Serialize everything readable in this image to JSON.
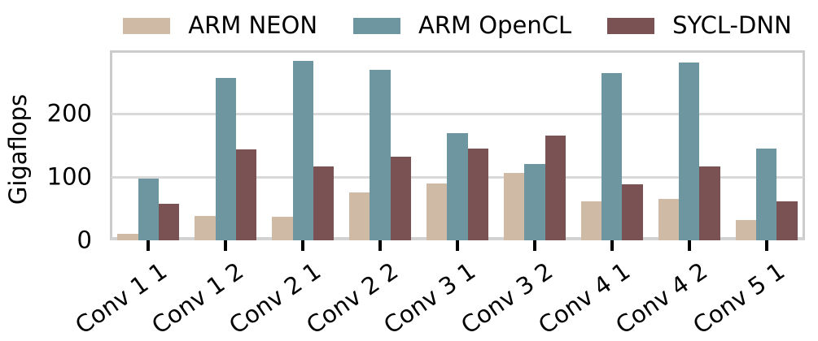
{
  "figure": {
    "background": "#ffffff",
    "text_color": "#000000",
    "grid_color": "#d9d9d9",
    "spine_color": "#cccccc",
    "tick_color": "#000000"
  },
  "chart_data": {
    "type": "bar",
    "title": "",
    "xlabel": "",
    "ylabel": "Gigaflops",
    "categories": [
      "Conv 1 1",
      "Conv 1 2",
      "Conv 2 1",
      "Conv 2 2",
      "Conv 3 1",
      "Conv 3 2",
      "Conv 4 1",
      "Conv 4 2",
      "Conv 5 1"
    ],
    "series": [
      {
        "name": "ARM NEON",
        "color": "#cfbaa5",
        "values": [
          10,
          38,
          37,
          76,
          90,
          107,
          61,
          66,
          32
        ]
      },
      {
        "name": "ARM OpenCL",
        "color": "#6e96a0",
        "values": [
          97,
          257,
          283,
          269,
          169,
          121,
          264,
          281,
          145
        ]
      },
      {
        "name": "SYCL-DNN",
        "color": "#7b5253",
        "values": [
          58,
          143,
          117,
          132,
          145,
          165,
          88,
          117,
          61
        ]
      }
    ],
    "ylim": [
      0,
      300
    ],
    "yticks": [
      0,
      100,
      200
    ],
    "grid": true,
    "legend_position": "top center"
  }
}
